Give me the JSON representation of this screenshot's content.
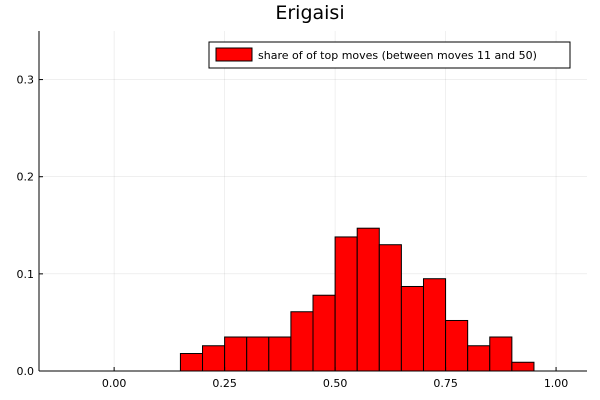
{
  "chart_data": {
    "type": "bar",
    "title": "Erigaisi",
    "xlabel": "",
    "ylabel": "",
    "xlim": [
      -0.17,
      1.07
    ],
    "ylim": [
      0,
      0.35
    ],
    "xticks": [
      0.0,
      0.25,
      0.5,
      0.75,
      1.0
    ],
    "xtick_labels": [
      "0.00",
      "0.25",
      "0.50",
      "0.75",
      "1.00"
    ],
    "yticks": [
      0.0,
      0.1,
      0.2,
      0.3
    ],
    "ytick_labels": [
      "0.0",
      "0.1",
      "0.2",
      "0.3"
    ],
    "grid": true,
    "legend_position": "top-right",
    "color": "#ff0000",
    "series": [
      {
        "name": "share of of top moves (between moves 11 and 50)",
        "bin_width": 0.05,
        "bin_starts": [
          0.15,
          0.2,
          0.25,
          0.3,
          0.35,
          0.4,
          0.45,
          0.5,
          0.55,
          0.6,
          0.65,
          0.7,
          0.75,
          0.8,
          0.85,
          0.9
        ],
        "values": [
          0.018,
          0.026,
          0.035,
          0.035,
          0.035,
          0.061,
          0.078,
          0.138,
          0.147,
          0.13,
          0.087,
          0.095,
          0.052,
          0.026,
          0.035,
          0.009
        ]
      }
    ]
  }
}
